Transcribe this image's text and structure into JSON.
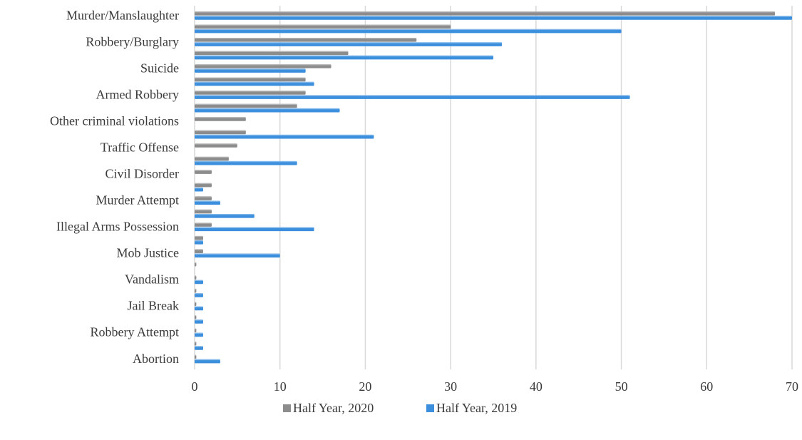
{
  "chart_data": {
    "type": "bar",
    "orientation": "horizontal",
    "title": "",
    "xlabel": "",
    "ylabel": "",
    "xlim": [
      0,
      70
    ],
    "x_ticks": [
      0,
      10,
      20,
      30,
      40,
      50,
      60,
      70
    ],
    "grid": "vertical",
    "legend": "bottom-center",
    "categories": [
      "Murder/Manslaughter",
      "",
      "Robbery/Burglary",
      "",
      "Suicide",
      "",
      "Armed Robbery",
      "",
      "Other criminal violations",
      "",
      "Traffic Offense",
      "",
      "Civil Disorder",
      "",
      "Murder Attempt",
      "",
      "Illegal Arms Possession",
      "",
      "Mob Justice",
      "",
      "Vandalism",
      "",
      "Jail Break",
      "",
      "Robbery Attempt",
      "",
      "Abortion"
    ],
    "series": [
      {
        "name": "Half Year, 2020",
        "color": "#8c8c8c",
        "values": [
          68,
          30,
          26,
          18,
          16,
          13,
          13,
          12,
          6,
          6,
          5,
          4,
          2,
          2,
          2,
          2,
          2,
          1,
          1,
          0.2,
          0.2,
          0.2,
          0.2,
          0.2,
          0.2,
          0.2,
          0.2
        ]
      },
      {
        "name": "Half Year, 2019",
        "color": "#3b8fdd",
        "values": [
          70,
          50,
          36,
          35,
          13,
          14,
          51,
          17,
          0,
          21,
          0,
          12,
          0,
          1,
          3,
          7,
          14,
          1,
          10,
          0,
          1,
          1,
          1,
          1,
          1,
          1,
          3
        ]
      }
    ]
  }
}
